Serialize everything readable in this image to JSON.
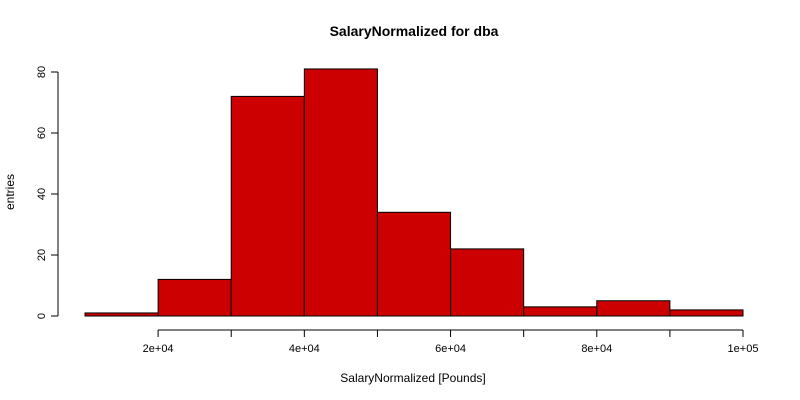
{
  "chart_data": {
    "type": "bar",
    "title": "SalaryNormalized for dba",
    "xlabel": "SalaryNormalized [Pounds]",
    "ylabel": "entries",
    "bins": [
      {
        "start": 10000,
        "end": 20000,
        "count": 1
      },
      {
        "start": 20000,
        "end": 30000,
        "count": 12
      },
      {
        "start": 30000,
        "end": 40000,
        "count": 72
      },
      {
        "start": 40000,
        "end": 50000,
        "count": 81
      },
      {
        "start": 50000,
        "end": 60000,
        "count": 34
      },
      {
        "start": 60000,
        "end": 70000,
        "count": 22
      },
      {
        "start": 70000,
        "end": 80000,
        "count": 3
      },
      {
        "start": 80000,
        "end": 90000,
        "count": 5
      },
      {
        "start": 90000,
        "end": 100000,
        "count": 2
      }
    ],
    "xlim": [
      10000,
      100000
    ],
    "ylim": [
      0,
      80
    ],
    "x_ticks": [
      {
        "value": 20000,
        "label": "2e+04"
      },
      {
        "value": 40000,
        "label": "4e+04"
      },
      {
        "value": 60000,
        "label": "6e+04"
      },
      {
        "value": 80000,
        "label": "8e+04"
      },
      {
        "value": 100000,
        "label": "1e+05"
      }
    ],
    "x_minor_ticks": [
      30000,
      50000,
      70000,
      90000
    ],
    "y_ticks": [
      {
        "value": 0,
        "label": "0"
      },
      {
        "value": 20,
        "label": "20"
      },
      {
        "value": 40,
        "label": "40"
      },
      {
        "value": 60,
        "label": "60"
      },
      {
        "value": 80,
        "label": "80"
      }
    ],
    "bar_color": "#cc0000",
    "grid": false,
    "legend": "none"
  }
}
